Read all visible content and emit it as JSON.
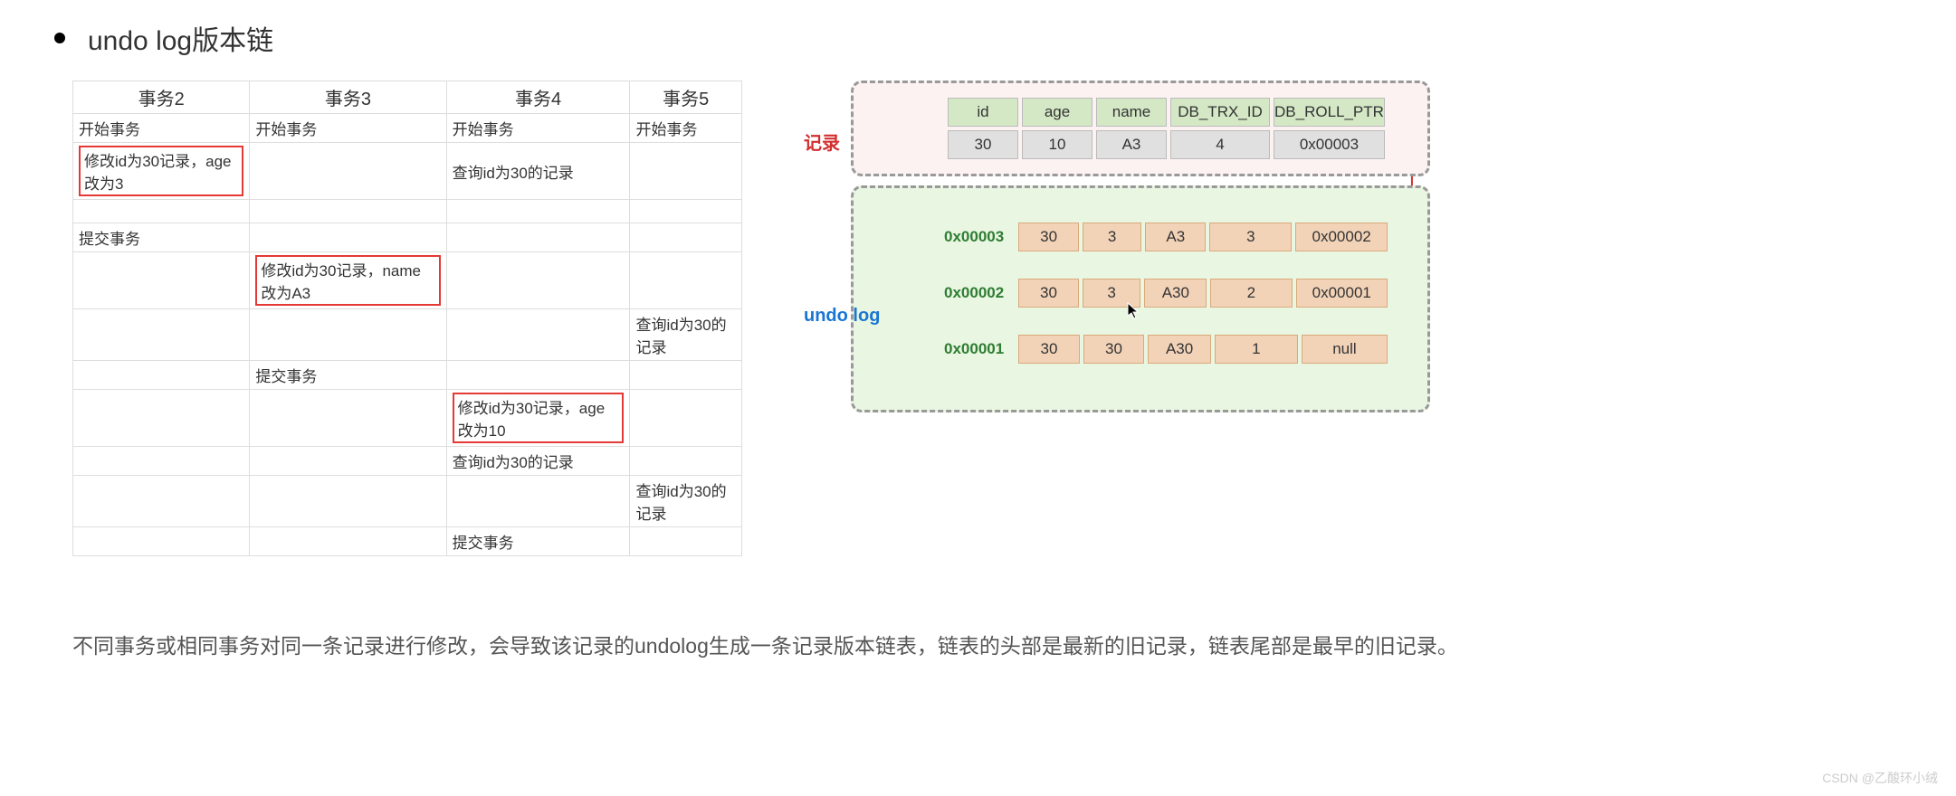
{
  "title": "undo log版本链",
  "tx_headers": [
    "事务2",
    "事务3",
    "事务4",
    "事务5"
  ],
  "tx_rows": [
    {
      "c0": "开始事务",
      "c1": "开始事务",
      "c2": "开始事务",
      "c3": "开始事务",
      "hl": []
    },
    {
      "c0": "修改id为30记录，age改为3",
      "c1": "",
      "c2": "查询id为30的记录",
      "c3": "",
      "hl": [
        0
      ]
    },
    {
      "c0": "",
      "c1": "",
      "c2": "",
      "c3": "",
      "hl": []
    },
    {
      "c0": "提交事务",
      "c1": "",
      "c2": "",
      "c3": "",
      "hl": []
    },
    {
      "c0": "",
      "c1": "修改id为30记录，name改为A3",
      "c2": "",
      "c3": "",
      "hl": [
        1
      ]
    },
    {
      "c0": "",
      "c1": "",
      "c2": "",
      "c3": "查询id为30的记录",
      "hl": []
    },
    {
      "c0": "",
      "c1": "提交事务",
      "c2": "",
      "c3": "",
      "hl": []
    },
    {
      "c0": "",
      "c1": "",
      "c2": "修改id为30记录，age改为10",
      "c3": "",
      "hl": [
        2
      ]
    },
    {
      "c0": "",
      "c1": "",
      "c2": "查询id为30的记录",
      "c3": "",
      "hl": []
    },
    {
      "c0": "",
      "c1": "",
      "c2": "",
      "c3": "查询id为30的记录",
      "hl": []
    },
    {
      "c0": "",
      "c1": "",
      "c2": "提交事务",
      "c3": "",
      "hl": []
    }
  ],
  "record_label": "记录",
  "undo_label": "undo log",
  "rec_headers": [
    "id",
    "age",
    "name",
    "DB_TRX_ID",
    "DB_ROLL_PTR"
  ],
  "rec_values": [
    "30",
    "10",
    "A3",
    "4",
    "0x00003"
  ],
  "undo_rows": [
    {
      "addr": "0x00003",
      "cells": [
        "30",
        "3",
        "A3",
        "3",
        "0x00002"
      ]
    },
    {
      "addr": "0x00002",
      "cells": [
        "30",
        "3",
        "A30",
        "2",
        "0x00001"
      ]
    },
    {
      "addr": "0x00001",
      "cells": [
        "30",
        "30",
        "A30",
        "1",
        "null"
      ]
    }
  ],
  "description": "不同事务或相同事务对同一条记录进行修改，会导致该记录的undolog生成一条记录版本链表，链表的头部是最新的旧记录，链表尾部是最早的旧记录。",
  "watermark": "CSDN @乙酸环小绒",
  "colors": {
    "red_highlight": "#e53935",
    "pink_bg": "#fdf2f2",
    "green_bg": "#e9f6e2",
    "header_green": "#d4e8c6",
    "value_gray": "#e0e0e0",
    "undo_orange": "#f3d3b8",
    "addr_green": "#2e7d32",
    "arrow_red": "#d32f2f"
  }
}
